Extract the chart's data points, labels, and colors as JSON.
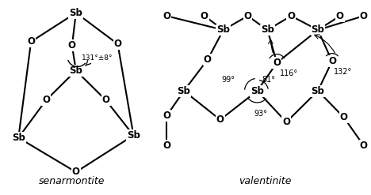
{
  "background": "#ffffff",
  "senarmontite_label": "senarmontite",
  "valentinite_label": "valentinite",
  "angle_label_1": "131°±8°",
  "angle_116": "116°",
  "angle_132": "132°",
  "angle_99": "99°",
  "angle_81": "81°",
  "angle_93": "93°"
}
